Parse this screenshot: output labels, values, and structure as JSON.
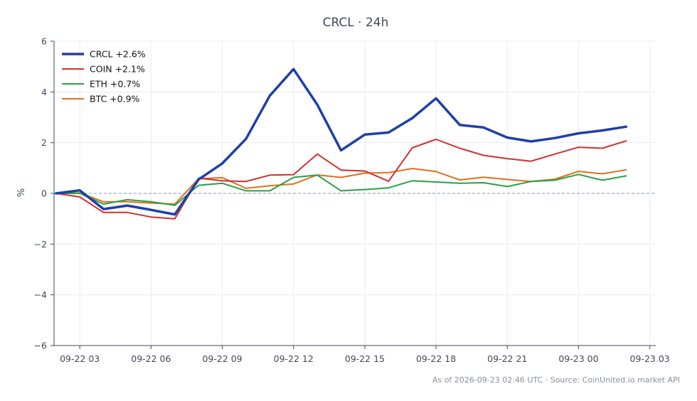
{
  "chart_data": {
    "type": "line",
    "title": "CRCL · 24h",
    "ylabel": "%",
    "xlabel": "",
    "ylim": [
      -6,
      6
    ],
    "yticks": [
      -6,
      -4,
      -2,
      0,
      2,
      4,
      6
    ],
    "xlim": [
      "2026-09-22 01:55",
      "2026-09-23 03:15"
    ],
    "xticks": [
      {
        "t": "2026-09-22 03:00",
        "label": "09-22 03"
      },
      {
        "t": "2026-09-22 06:00",
        "label": "09-22 06"
      },
      {
        "t": "2026-09-22 09:00",
        "label": "09-22 09"
      },
      {
        "t": "2026-09-22 12:00",
        "label": "09-22 12"
      },
      {
        "t": "2026-09-22 15:00",
        "label": "09-22 15"
      },
      {
        "t": "2026-09-22 18:00",
        "label": "09-22 18"
      },
      {
        "t": "2026-09-22 21:00",
        "label": "09-22 21"
      },
      {
        "t": "2026-09-23 00:00",
        "label": "09-23 00"
      },
      {
        "t": "2026-09-23 03:00",
        "label": "09-23 03"
      }
    ],
    "grid": true,
    "zero_line": true,
    "legend_position": "top-left",
    "x": [
      "2026-09-22 02:00",
      "2026-09-22 03:00",
      "2026-09-22 04:00",
      "2026-09-22 05:00",
      "2026-09-22 06:00",
      "2026-09-22 07:00",
      "2026-09-22 08:00",
      "2026-09-22 09:00",
      "2026-09-22 10:00",
      "2026-09-22 11:00",
      "2026-09-22 12:00",
      "2026-09-22 13:00",
      "2026-09-22 14:00",
      "2026-09-22 15:00",
      "2026-09-22 16:00",
      "2026-09-22 17:00",
      "2026-09-22 18:00",
      "2026-09-22 19:00",
      "2026-09-22 20:00",
      "2026-09-22 21:00",
      "2026-09-22 22:00",
      "2026-09-22 23:00",
      "2026-09-23 00:00",
      "2026-09-23 01:00",
      "2026-09-23 02:00"
    ],
    "series": [
      {
        "name": "CRCL +2.6%",
        "color": "#1f3fa8",
        "width": 3.5,
        "values": [
          0,
          0.12,
          -0.62,
          -0.48,
          -0.65,
          -0.83,
          0.55,
          1.18,
          2.15,
          3.85,
          4.9,
          3.5,
          1.7,
          2.32,
          2.4,
          2.97,
          3.75,
          2.7,
          2.6,
          2.2,
          2.05,
          2.18,
          2.37,
          2.48,
          2.63
        ]
      },
      {
        "name": "COIN +2.1%",
        "color": "#d03030",
        "width": 2,
        "values": [
          0,
          -0.14,
          -0.75,
          -0.75,
          -0.93,
          -1.0,
          0.6,
          0.5,
          0.47,
          0.72,
          0.74,
          1.55,
          0.92,
          0.88,
          0.48,
          1.8,
          2.13,
          1.78,
          1.5,
          1.37,
          1.27,
          1.55,
          1.82,
          1.78,
          2.07
        ]
      },
      {
        "name": "ETH +0.7%",
        "color": "#2aa046",
        "width": 2,
        "values": [
          0,
          0.0,
          -0.42,
          -0.25,
          -0.33,
          -0.47,
          0.32,
          0.4,
          0.1,
          0.1,
          0.63,
          0.72,
          0.1,
          0.15,
          0.22,
          0.5,
          0.45,
          0.4,
          0.42,
          0.27,
          0.47,
          0.52,
          0.75,
          0.52,
          0.69
        ]
      },
      {
        "name": "BTC +0.9%",
        "color": "#e0701e",
        "width": 2,
        "values": [
          0,
          0.02,
          -0.33,
          -0.33,
          -0.38,
          -0.42,
          0.58,
          0.62,
          0.2,
          0.3,
          0.37,
          0.73,
          0.63,
          0.8,
          0.82,
          0.98,
          0.86,
          0.53,
          0.64,
          0.55,
          0.47,
          0.56,
          0.87,
          0.77,
          0.93
        ]
      }
    ]
  },
  "footer": "As of 2026-09-23 02:46 UTC · Source: CoinUnited.io market API"
}
